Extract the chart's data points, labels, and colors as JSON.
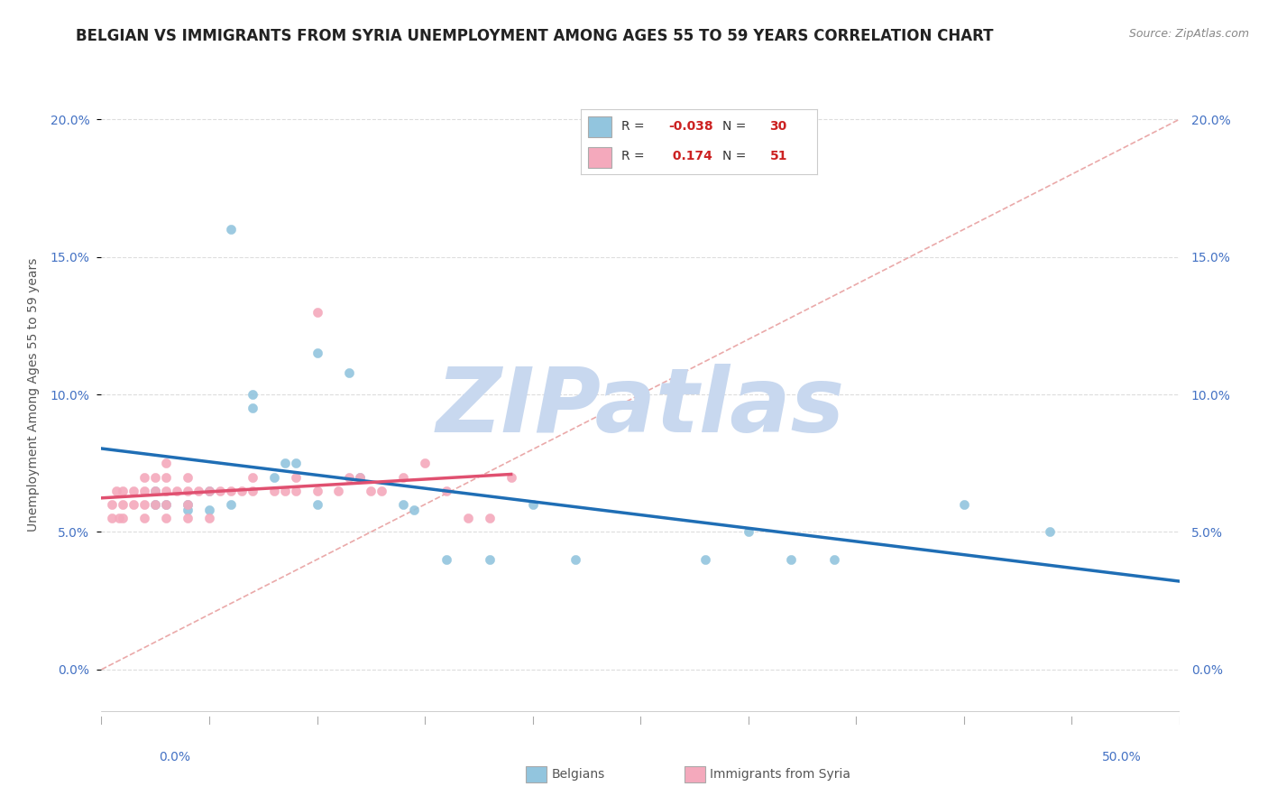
{
  "title": "BELGIAN VS IMMIGRANTS FROM SYRIA UNEMPLOYMENT AMONG AGES 55 TO 59 YEARS CORRELATION CHART",
  "source": "Source: ZipAtlas.com",
  "ylabel": "Unemployment Among Ages 55 to 59 years",
  "legend_bottom": [
    "Belgians",
    "Immigrants from Syria"
  ],
  "xlim": [
    0.0,
    0.5
  ],
  "ylim": [
    -0.02,
    0.22
  ],
  "yticks": [
    0.0,
    0.05,
    0.1,
    0.15,
    0.2
  ],
  "ytick_labels": [
    "0.0%",
    "5.0%",
    "10.0%",
    "15.0%",
    "20.0%"
  ],
  "xtick_labels": [
    "0.0%",
    "50.0%"
  ],
  "watermark_text": "ZIPatlas",
  "legend_r1": "-0.038",
  "legend_n1": "30",
  "legend_r2": "0.174",
  "legend_n2": "51",
  "blue_scatter_x": [
    0.025,
    0.025,
    0.03,
    0.04,
    0.04,
    0.05,
    0.05,
    0.06,
    0.06,
    0.07,
    0.07,
    0.08,
    0.085,
    0.09,
    0.1,
    0.1,
    0.115,
    0.12,
    0.14,
    0.145,
    0.2,
    0.3,
    0.32,
    0.4,
    0.44,
    0.34,
    0.28,
    0.22,
    0.18,
    0.16
  ],
  "blue_scatter_y": [
    0.065,
    0.06,
    0.06,
    0.058,
    0.06,
    0.058,
    0.065,
    0.06,
    0.16,
    0.095,
    0.1,
    0.07,
    0.075,
    0.075,
    0.115,
    0.06,
    0.108,
    0.07,
    0.06,
    0.058,
    0.06,
    0.05,
    0.04,
    0.06,
    0.05,
    0.04,
    0.04,
    0.04,
    0.04,
    0.04
  ],
  "pink_scatter_x": [
    0.005,
    0.005,
    0.007,
    0.008,
    0.01,
    0.01,
    0.01,
    0.015,
    0.015,
    0.02,
    0.02,
    0.02,
    0.02,
    0.025,
    0.025,
    0.025,
    0.03,
    0.03,
    0.03,
    0.03,
    0.03,
    0.035,
    0.04,
    0.04,
    0.04,
    0.04,
    0.045,
    0.05,
    0.05,
    0.055,
    0.06,
    0.065,
    0.07,
    0.07,
    0.08,
    0.085,
    0.09,
    0.09,
    0.1,
    0.1,
    0.11,
    0.115,
    0.12,
    0.125,
    0.13,
    0.14,
    0.15,
    0.16,
    0.17,
    0.18,
    0.19
  ],
  "pink_scatter_y": [
    0.055,
    0.06,
    0.065,
    0.055,
    0.055,
    0.06,
    0.065,
    0.06,
    0.065,
    0.055,
    0.06,
    0.065,
    0.07,
    0.06,
    0.065,
    0.07,
    0.055,
    0.06,
    0.065,
    0.07,
    0.075,
    0.065,
    0.055,
    0.06,
    0.065,
    0.07,
    0.065,
    0.055,
    0.065,
    0.065,
    0.065,
    0.065,
    0.065,
    0.07,
    0.065,
    0.065,
    0.065,
    0.07,
    0.065,
    0.13,
    0.065,
    0.07,
    0.07,
    0.065,
    0.065,
    0.07,
    0.075,
    0.065,
    0.055,
    0.055,
    0.07
  ],
  "blue_color": "#92c5de",
  "pink_color": "#f4a9bc",
  "blue_line_color": "#1f6eb5",
  "pink_line_color": "#e05070",
  "diagonal_color": "#e8a0a0",
  "watermark_color": "#c8d8ef",
  "bg_color": "#ffffff",
  "title_fontsize": 12,
  "tick_fontsize": 10,
  "ylabel_fontsize": 10,
  "legend_fontsize": 11
}
